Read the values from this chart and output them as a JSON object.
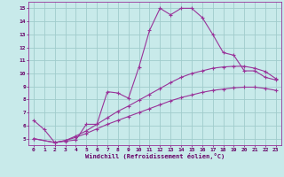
{
  "xlabel": "Windchill (Refroidissement éolien,°C)",
  "line_color": "#993399",
  "bg_color": "#c8eaea",
  "grid_color": "#a0cccc",
  "xlim": [
    -0.5,
    23.5
  ],
  "ylim": [
    4.5,
    15.5
  ],
  "xticks": [
    0,
    1,
    2,
    3,
    4,
    5,
    6,
    7,
    8,
    9,
    10,
    11,
    12,
    13,
    14,
    15,
    16,
    17,
    18,
    19,
    20,
    21,
    22,
    23
  ],
  "yticks": [
    5,
    6,
    7,
    8,
    9,
    10,
    11,
    12,
    13,
    14,
    15
  ],
  "curve1_x": [
    0,
    1,
    2,
    3,
    4,
    5,
    6,
    7,
    8,
    9,
    10,
    11,
    12,
    13,
    14,
    15,
    16,
    17,
    18,
    19,
    20,
    21,
    22,
    23
  ],
  "curve1_y": [
    6.4,
    5.7,
    4.7,
    4.8,
    4.9,
    6.1,
    6.1,
    8.6,
    8.5,
    8.1,
    10.5,
    13.3,
    15.0,
    14.5,
    15.0,
    15.0,
    14.3,
    13.0,
    11.6,
    11.4,
    10.2,
    10.2,
    9.7,
    9.5
  ],
  "curve2_x": [
    0,
    2,
    3,
    4,
    5,
    6,
    7,
    8,
    9,
    10,
    11,
    12,
    13,
    14,
    15,
    16,
    17,
    18,
    19,
    20,
    21,
    22,
    23
  ],
  "curve2_y": [
    5.0,
    4.7,
    4.85,
    5.2,
    5.6,
    6.1,
    6.6,
    7.1,
    7.5,
    7.95,
    8.4,
    8.85,
    9.3,
    9.7,
    10.0,
    10.2,
    10.4,
    10.5,
    10.55,
    10.55,
    10.4,
    10.15,
    9.6
  ],
  "curve3_x": [
    0,
    2,
    3,
    4,
    5,
    6,
    7,
    8,
    9,
    10,
    11,
    12,
    13,
    14,
    15,
    16,
    17,
    18,
    19,
    20,
    21,
    22,
    23
  ],
  "curve3_y": [
    5.0,
    4.7,
    4.85,
    5.1,
    5.4,
    5.75,
    6.1,
    6.4,
    6.7,
    7.0,
    7.3,
    7.6,
    7.9,
    8.15,
    8.35,
    8.55,
    8.7,
    8.8,
    8.9,
    8.95,
    8.95,
    8.85,
    8.7
  ]
}
